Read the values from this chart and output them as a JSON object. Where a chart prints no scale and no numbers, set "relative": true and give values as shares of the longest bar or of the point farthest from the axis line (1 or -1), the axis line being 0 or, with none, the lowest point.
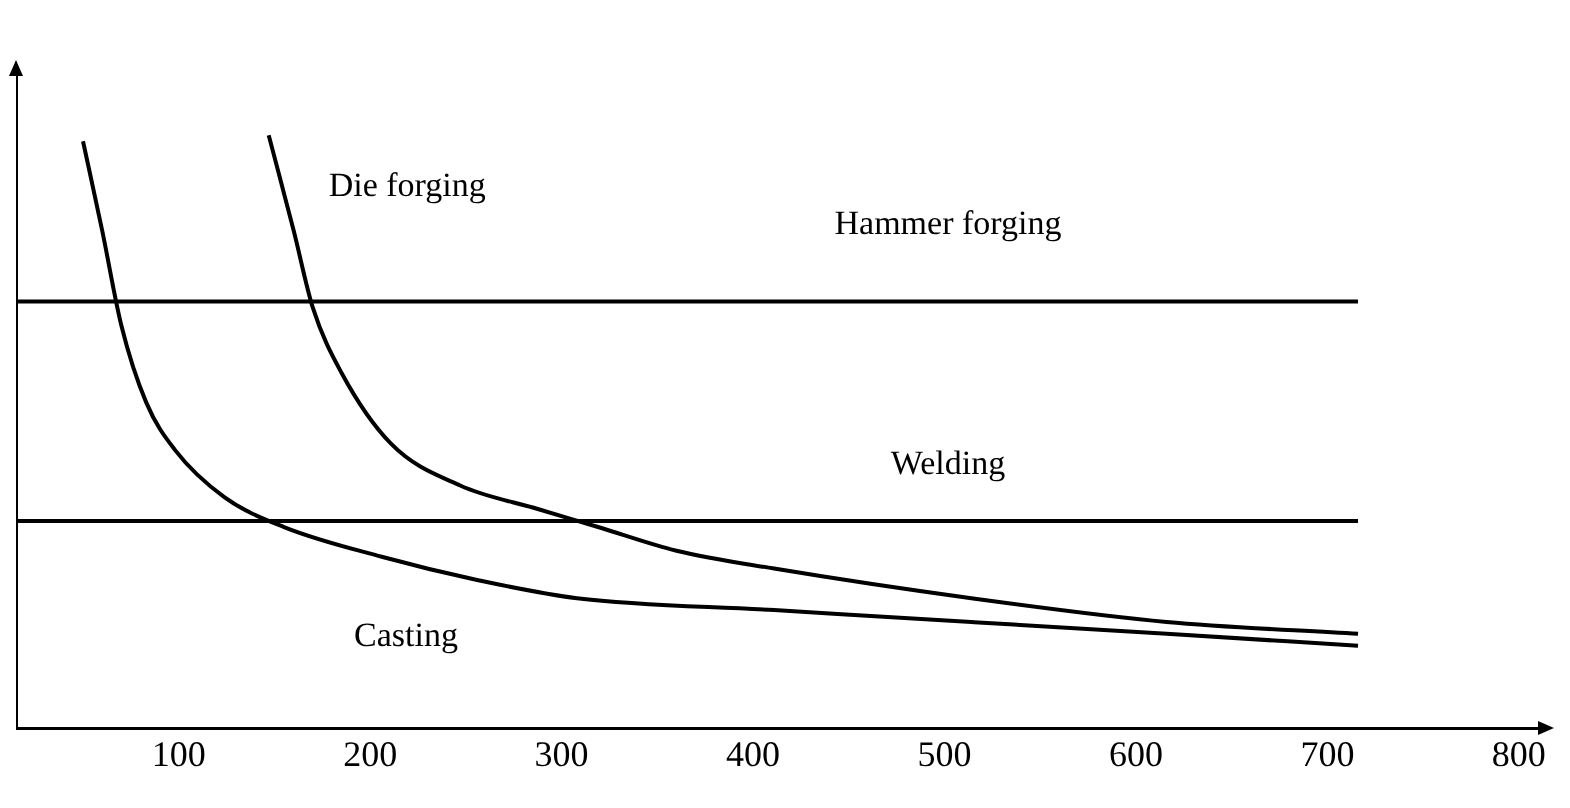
{
  "chart_data": {
    "type": "line",
    "relative": true,
    "xlim": [
      15,
      810
    ],
    "xticks": [
      100,
      200,
      300,
      400,
      500,
      600,
      700,
      800
    ],
    "grid": false,
    "legend": false,
    "marker": "none",
    "line_style": "solid",
    "series": [
      {
        "name": "Hammer forging",
        "color": "#000000",
        "x": [
          16,
          716
        ],
        "values": [
          0.72,
          0.72
        ]
      },
      {
        "name": "Welding",
        "color": "#000000",
        "x": [
          16,
          716
        ],
        "values": [
          0.35,
          0.35
        ]
      },
      {
        "name": "Die forging",
        "color": "#000000",
        "x": [
          147,
          160,
          170,
          185,
          211,
          247,
          288,
          319,
          360,
          411,
          514,
          616,
          716
        ],
        "values": [
          1.0,
          0.84,
          0.71,
          0.6,
          0.48,
          0.41,
          0.37,
          0.34,
          0.3,
          0.27,
          0.22,
          0.18,
          0.16
        ]
      },
      {
        "name": "Casting",
        "color": "#000000",
        "x": [
          50,
          60,
          70,
          83,
          98,
          124,
          155,
          206,
          257,
          308,
          411,
          514,
          616,
          716
        ],
        "values": [
          0.99,
          0.84,
          0.68,
          0.55,
          0.47,
          0.39,
          0.34,
          0.29,
          0.25,
          0.22,
          0.2,
          0.18,
          0.16,
          0.14
        ]
      }
    ]
  }
}
